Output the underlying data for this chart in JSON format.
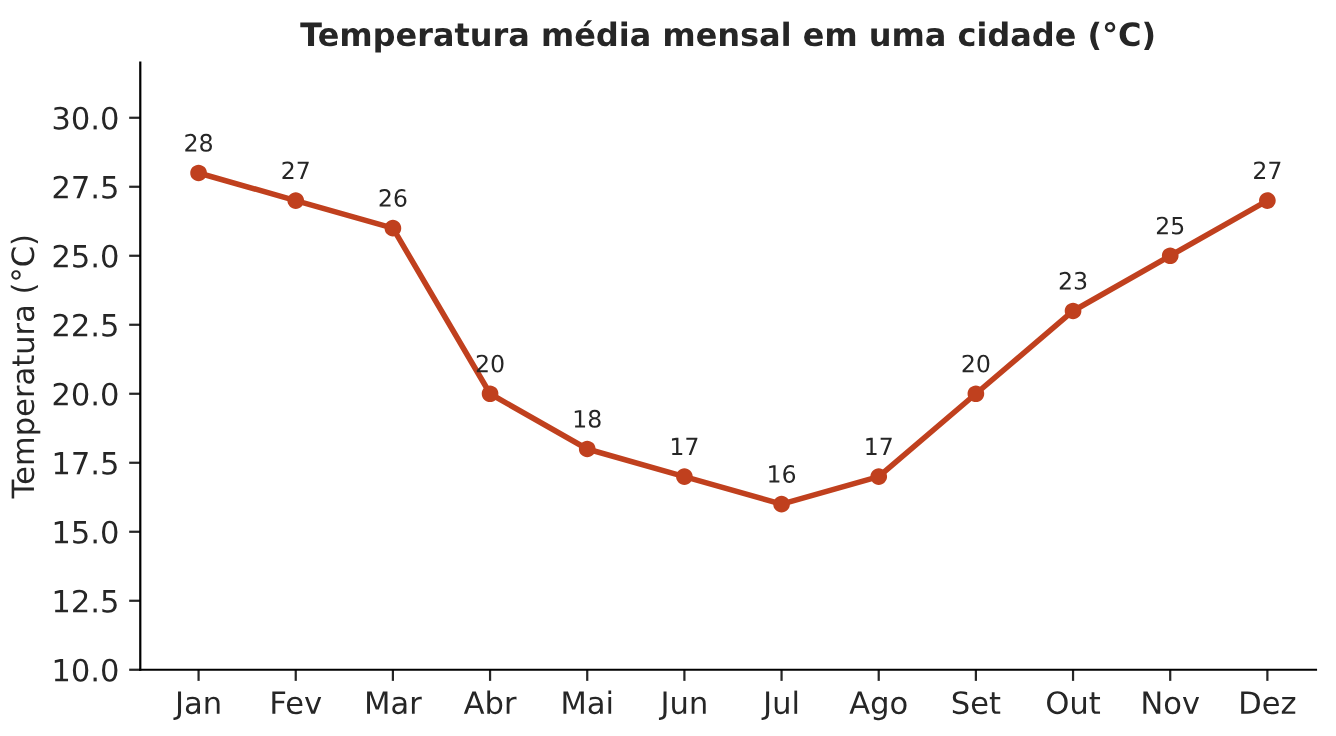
{
  "chart_data": {
    "type": "line",
    "title": "Temperatura média mensal em uma cidade (°C)",
    "ylabel": "Temperatura (°C)",
    "categories": [
      "Jan",
      "Fev",
      "Mar",
      "Abr",
      "Mai",
      "Jun",
      "Jul",
      "Ago",
      "Set",
      "Out",
      "Nov",
      "Dez"
    ],
    "series": [
      {
        "color": "#c0401e",
        "values": [
          28,
          27,
          26,
          20,
          18,
          17,
          16,
          17,
          20,
          23,
          25,
          27
        ]
      }
    ],
    "ylim": [
      10,
      32
    ],
    "yticks": [
      {
        "value": 10,
        "label": "10.0"
      },
      {
        "value": 12.5,
        "label": "12.5"
      },
      {
        "value": 15,
        "label": "15.0"
      },
      {
        "value": 17.5,
        "label": "17.5"
      },
      {
        "value": 20,
        "label": "20.0"
      },
      {
        "value": 22.5,
        "label": "22.5"
      },
      {
        "value": 25,
        "label": "25.0"
      },
      {
        "value": 27.5,
        "label": "27.5"
      },
      {
        "value": 30,
        "label": "30.0"
      }
    ],
    "data_labels": true,
    "marker": "circle",
    "line_style": "solid",
    "grid": false
  }
}
